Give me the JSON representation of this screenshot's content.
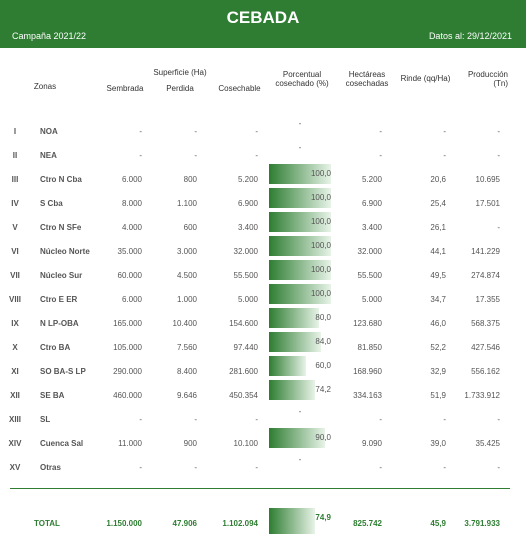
{
  "header": {
    "title": "CEBADA",
    "campaign": "Campaña 2021/22",
    "date": "Datos al: 29/12/2021"
  },
  "columns": {
    "zone": "Zonas",
    "surface": "Superficie (Ha)",
    "sown": "Sembrada",
    "lost": "Perdida",
    "harvestable": "Cosechable",
    "percent": "Porcentual cosechado (%)",
    "harvested": "Hectáreas cosechadas",
    "yield": "Rinde (qq/Ha)",
    "production": "Producción (Tn)"
  },
  "rows": [
    {
      "id": "I",
      "zone": "NOA",
      "sown": "-",
      "lost": "-",
      "harvestable": "-",
      "percent": "-",
      "harvested": "-",
      "yield": "-",
      "production": "-"
    },
    {
      "id": "II",
      "zone": "NEA",
      "sown": "-",
      "lost": "-",
      "harvestable": "-",
      "percent": "-",
      "harvested": "-",
      "yield": "-",
      "production": "-"
    },
    {
      "id": "III",
      "zone": "Ctro N Cba",
      "sown": "6.000",
      "lost": "800",
      "harvestable": "5.200",
      "percent": {
        "value": 100,
        "label": "100,0"
      },
      "harvested": "5.200",
      "yield": "20,6",
      "production": "10.695"
    },
    {
      "id": "IV",
      "zone": "S Cba",
      "sown": "8.000",
      "lost": "1.100",
      "harvestable": "6.900",
      "percent": {
        "value": 100,
        "label": "100,0"
      },
      "harvested": "6.900",
      "yield": "25,4",
      "production": "17.501"
    },
    {
      "id": "V",
      "zone": "Ctro N SFe",
      "sown": "4.000",
      "lost": "600",
      "harvestable": "3.400",
      "percent": {
        "value": 100,
        "label": "100,0"
      },
      "harvested": "3.400",
      "yield": "26,1",
      "production": "-"
    },
    {
      "id": "VI",
      "zone": "Núcleo Norte",
      "sown": "35.000",
      "lost": "3.000",
      "harvestable": "32.000",
      "percent": {
        "value": 100,
        "label": "100,0"
      },
      "harvested": "32.000",
      "yield": "44,1",
      "production": "141.229"
    },
    {
      "id": "VII",
      "zone": "Núcleo Sur",
      "sown": "60.000",
      "lost": "4.500",
      "harvestable": "55.500",
      "percent": {
        "value": 100,
        "label": "100,0"
      },
      "harvested": "55.500",
      "yield": "49,5",
      "production": "274.874"
    },
    {
      "id": "VIII",
      "zone": "Ctro E ER",
      "sown": "6.000",
      "lost": "1.000",
      "harvestable": "5.000",
      "percent": {
        "value": 100,
        "label": "100,0"
      },
      "harvested": "5.000",
      "yield": "34,7",
      "production": "17.355"
    },
    {
      "id": "IX",
      "zone": "N LP-OBA",
      "sown": "165.000",
      "lost": "10.400",
      "harvestable": "154.600",
      "percent": {
        "value": 80,
        "label": "80,0"
      },
      "harvested": "123.680",
      "yield": "46,0",
      "production": "568.375"
    },
    {
      "id": "X",
      "zone": "Ctro BA",
      "sown": "105.000",
      "lost": "7.560",
      "harvestable": "97.440",
      "percent": {
        "value": 84,
        "label": "84,0"
      },
      "harvested": "81.850",
      "yield": "52,2",
      "production": "427.546"
    },
    {
      "id": "XI",
      "zone": "SO BA-S LP",
      "sown": "290.000",
      "lost": "8.400",
      "harvestable": "281.600",
      "percent": {
        "value": 60,
        "label": "60,0"
      },
      "harvested": "168.960",
      "yield": "32,9",
      "production": "556.162"
    },
    {
      "id": "XII",
      "zone": "SE BA",
      "sown": "460.000",
      "lost": "9.646",
      "harvestable": "450.354",
      "percent": {
        "value": 74.2,
        "label": "74,2"
      },
      "harvested": "334.163",
      "yield": "51,9",
      "production": "1.733.912"
    },
    {
      "id": "XIII",
      "zone": "SL",
      "sown": "-",
      "lost": "-",
      "harvestable": "-",
      "percent": "-",
      "harvested": "-",
      "yield": "-",
      "production": "-"
    },
    {
      "id": "XIV",
      "zone": "Cuenca Sal",
      "sown": "11.000",
      "lost": "900",
      "harvestable": "10.100",
      "percent": {
        "value": 90,
        "label": "90,0"
      },
      "harvested": "9.090",
      "yield": "39,0",
      "production": "35.425"
    },
    {
      "id": "XV",
      "zone": "Otras",
      "sown": "-",
      "lost": "-",
      "harvestable": "-",
      "percent": "-",
      "harvested": "-",
      "yield": "-",
      "production": "-"
    }
  ],
  "total": {
    "zone": "TOTAL",
    "sown": "1.150.000",
    "lost": "47.906",
    "harvestable": "1.102.094",
    "percent": {
      "value": 74.9,
      "label": "74,9"
    },
    "harvested": "825.742",
    "yield": "45,9",
    "production": "3.791.933"
  }
}
